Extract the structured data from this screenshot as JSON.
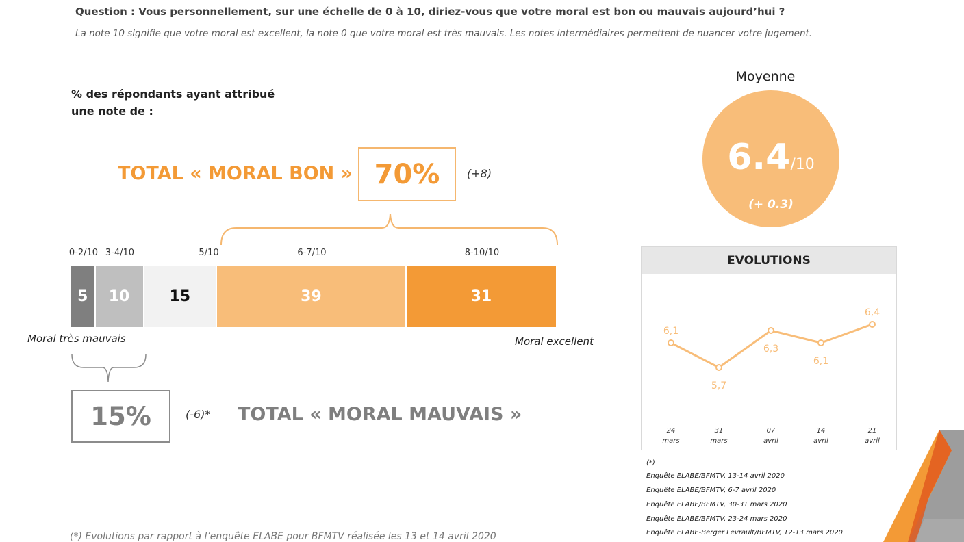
{
  "question": "Question : Vous personnellement, sur une échelle de 0 à 10, diriez-vous que votre moral est bon ou mauvais aujourd’hui ?",
  "instruction": "La note 10 signifie que votre moral est excellent, la note 0 que votre moral est très mauvais. Les notes intermédiaires permettent de nuancer votre jugement.",
  "respondents_label": "% des répondants ayant attribué une note de :",
  "total_bon": {
    "label": "TOTAL « MORAL BON »",
    "value": "70%",
    "change": "(+8)"
  },
  "total_mauvais": {
    "label": "TOTAL « MORAL MAUVAIS »",
    "value": "15%",
    "change": "(-6)*"
  },
  "scale_labels": {
    "low": "Moral très mauvais",
    "high": "Moral excellent"
  },
  "moyenne": {
    "label": "Moyenne",
    "value": "6.4",
    "unit": "/10",
    "change": "(+ 0.3)"
  },
  "evolutions_title": "EVOLUTIONS",
  "sources": {
    "marker": "(*)",
    "lines": [
      "Enquête ELABE/BFMTV, 13-14 avril 2020",
      "Enquête ELABE/BFMTV, 6-7 avril 2020",
      "Enquête ELABE/BFMTV, 30-31 mars 2020",
      "Enquête ELABE/BFMTV, 23-24 mars 2020",
      "Enquête ELABE-Berger Levrault/BFMTV, 12-13 mars 2020"
    ]
  },
  "footnote": "(*) Evolutions par rapport à l’enquête ELABE pour BFMTV réalisée les 13 et 14 avril 2020",
  "colors": {
    "seg_0_2": "#7f7f7f",
    "seg_3_4": "#bfbfbf",
    "seg_5": "#f2f2f2",
    "seg_6_7": "#f8bd79",
    "seg_8_10": "#f39a36",
    "line": "#f8bd79",
    "accent": "#f39a36"
  },
  "chart_data": [
    {
      "type": "bar",
      "orientation": "horizontal-stacked",
      "categories": [
        "0-2/10",
        "3-4/10",
        "5/10",
        "6-7/10",
        "8-10/10"
      ],
      "values": [
        5,
        10,
        15,
        39,
        31
      ]
    },
    {
      "type": "line",
      "title": "EVOLUTIONS",
      "x": [
        [
          "24",
          "mars"
        ],
        [
          "31",
          "mars"
        ],
        [
          "07",
          "avril"
        ],
        [
          "14",
          "avril"
        ],
        [
          "21",
          "avril"
        ]
      ],
      "values": [
        6.1,
        5.7,
        6.3,
        6.1,
        6.4
      ],
      "value_labels": [
        "6,1",
        "5,7",
        "6,3",
        "6,1",
        "6,4"
      ],
      "ylim": [
        5.0,
        7.0
      ],
      "grid": false,
      "legend": "none"
    }
  ]
}
